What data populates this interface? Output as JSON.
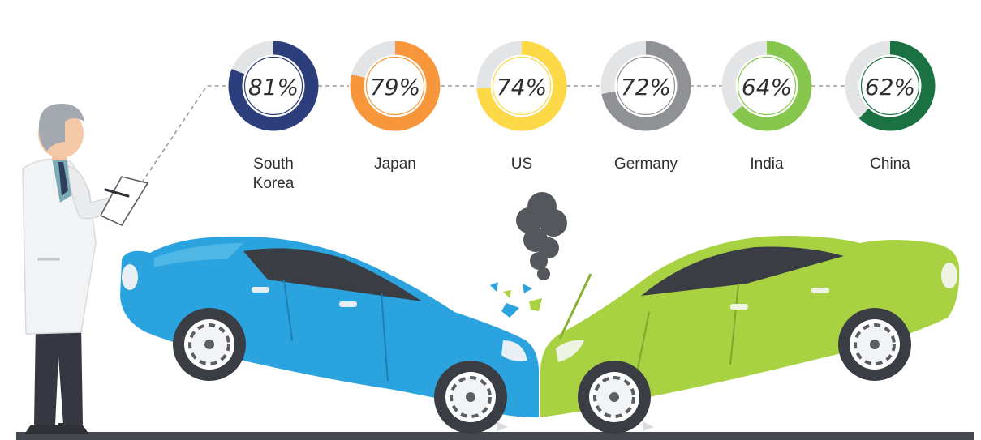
{
  "chart_data": {
    "type": "donut",
    "title": "",
    "categories": [
      "South Korea",
      "Japan",
      "US",
      "Germany",
      "India",
      "China"
    ],
    "category_lines": [
      [
        "South",
        "Korea"
      ],
      [
        "Japan"
      ],
      [
        "US"
      ],
      [
        "Germany"
      ],
      [
        "India"
      ],
      [
        "China"
      ]
    ],
    "values": [
      81,
      79,
      74,
      72,
      64,
      62
    ],
    "value_labels": [
      "81%",
      "79%",
      "74%",
      "72%",
      "64%",
      "62%"
    ],
    "colors": [
      "#2d3e7c",
      "#f7963b",
      "#fdd847",
      "#8f9195",
      "#86c64d",
      "#1a7141"
    ],
    "track_color": "#e3e4e6"
  },
  "illustration": {
    "left_car_color": "#2aa3df",
    "right_car_color": "#a9d243",
    "smoke_color": "#54575c",
    "ground_color": "#45484e"
  }
}
